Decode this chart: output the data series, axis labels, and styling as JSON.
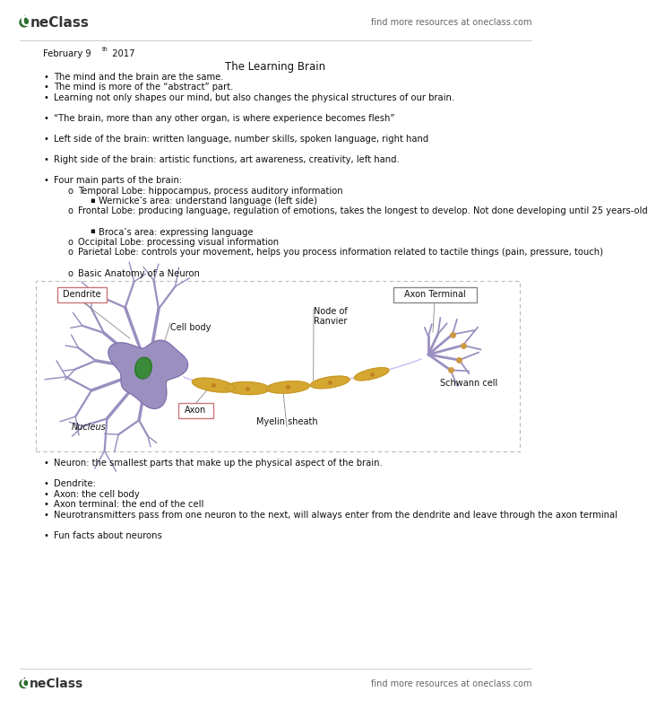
{
  "bg_color": "#ffffff",
  "oneclass_color": "#2d6e2d",
  "header_text": "find more resources at oneclass.com",
  "date_text": "February 9",
  "date_super": "th",
  "date_year": " 2017",
  "title": "The Learning Brain",
  "bullets_main": [
    "The mind and the brain are the same.",
    "The mind is more of the “abstract” part.",
    "Learning not only shapes our mind, but also changes the physical structures of our brain.",
    "“The brain, more than any other organ, is where experience becomes flesh”",
    "Left side of the brain: written language, number skills, spoken language, right hand",
    "Right side of the brain: artistic functions, art awareness, creativity, left hand.",
    "Four main parts of the brain:"
  ],
  "sub_level1": [
    "Temporal Lobe: hippocampus, process auditory information",
    "Frontal Lobe: producing language, regulation of emotions, takes the longest to develop. Not done developing until 25 years-old",
    "Occipital Lobe: processing visual information",
    "Parietal Lobe: controls your movement, helps you process information related to tactile things (pain, pressure, touch)",
    "Basic Anatomy of a Neuron"
  ],
  "sub_level2_temporal": "Wernicke’s area: understand language (left side)",
  "sub_level2_frontal": "Broca’s area: expressing language",
  "bottom_bullets": [
    "Neuron: the smallest parts that make up the physical aspect of the brain.",
    "Dendrite:",
    "Axon: the cell body",
    "Axon terminal: the end of the cell",
    "Neurotransmitters pass from one neuron to the next, will always enter from the dendrite and leave through the axon terminal",
    "Fun facts about neurons"
  ],
  "cell_body_color": "#9b8fc0",
  "nucleus_color": "#3a8a3a",
  "myelin_color": "#d4a830",
  "myelin_outline": "#c8962a",
  "axon_terminal_color": "#9b8fc0",
  "diagram_bg": "#ffffff",
  "diagram_border": "#bbbbbb",
  "label_border_pink": "#cc7777",
  "label_border_gray": "#888888",
  "text_color": "#111111",
  "font_size": 7.2,
  "font_size_title": 8.5,
  "font_size_header": 7.0,
  "font_size_diagram": 6.5
}
